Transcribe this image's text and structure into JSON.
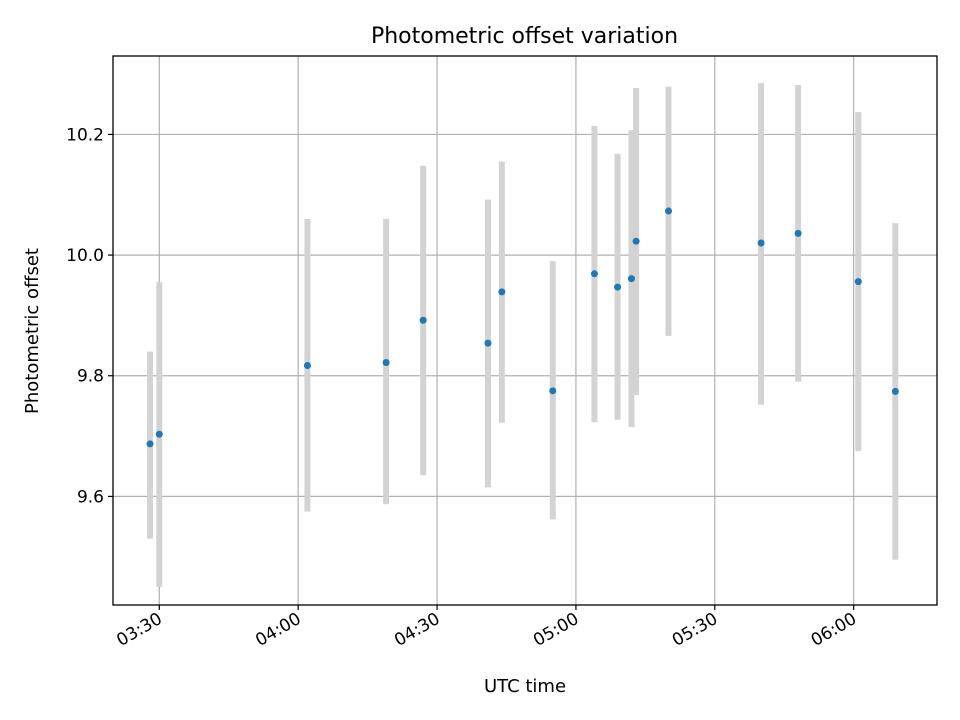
{
  "chart_data": {
    "type": "scatter",
    "title": "Photometric offset variation",
    "xlabel": "UTC time",
    "ylabel": "Photometric offset",
    "xlim": [
      "03:20",
      "06:18"
    ],
    "ylim": [
      9.42,
      10.33
    ],
    "x_ticks": [
      "03:30",
      "04:00",
      "04:30",
      "05:00",
      "05:30",
      "06:00"
    ],
    "y_ticks": [
      9.6,
      9.8,
      10.0,
      10.2
    ],
    "y_tick_labels": [
      "9.6",
      "9.8",
      "10.0",
      "10.2"
    ],
    "grid": true,
    "colors": {
      "points": "#1f77b4",
      "errorbars": "#d3d3d3",
      "grid": "#b0b0b0"
    },
    "series": [
      {
        "points": [
          {
            "x": "03:28",
            "y": 9.687,
            "err_low": 9.53,
            "err_high": 9.84
          },
          {
            "x": "03:30",
            "y": 9.703,
            "err_low": 9.45,
            "err_high": 9.955
          },
          {
            "x": "04:02",
            "y": 9.817,
            "err_low": 9.575,
            "err_high": 10.06
          },
          {
            "x": "04:19",
            "y": 9.822,
            "err_low": 9.587,
            "err_high": 10.06
          },
          {
            "x": "04:27",
            "y": 9.892,
            "err_low": 9.635,
            "err_high": 10.148
          },
          {
            "x": "04:41",
            "y": 9.854,
            "err_low": 9.615,
            "err_high": 10.092
          },
          {
            "x": "04:44",
            "y": 9.939,
            "err_low": 9.722,
            "err_high": 10.155
          },
          {
            "x": "04:55",
            "y": 9.775,
            "err_low": 9.562,
            "err_high": 9.99
          },
          {
            "x": "05:04",
            "y": 9.969,
            "err_low": 9.723,
            "err_high": 10.214
          },
          {
            "x": "05:09",
            "y": 9.947,
            "err_low": 9.727,
            "err_high": 10.168
          },
          {
            "x": "05:12",
            "y": 9.961,
            "err_low": 9.715,
            "err_high": 10.207
          },
          {
            "x": "05:13",
            "y": 10.023,
            "err_low": 9.768,
            "err_high": 10.277
          },
          {
            "x": "05:20",
            "y": 10.073,
            "err_low": 9.866,
            "err_high": 10.279
          },
          {
            "x": "05:40",
            "y": 10.02,
            "err_low": 9.752,
            "err_high": 10.285
          },
          {
            "x": "05:48",
            "y": 10.036,
            "err_low": 9.79,
            "err_high": 10.282
          },
          {
            "x": "06:01",
            "y": 9.956,
            "err_low": 9.675,
            "err_high": 10.237
          },
          {
            "x": "06:09",
            "y": 9.774,
            "err_low": 9.495,
            "err_high": 10.053
          }
        ]
      }
    ]
  }
}
